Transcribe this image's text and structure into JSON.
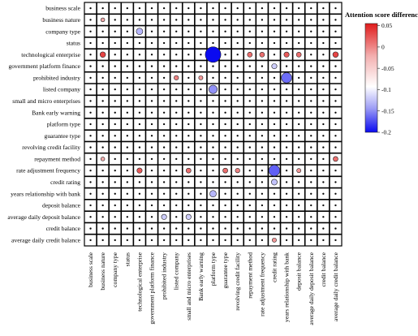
{
  "chart_data": {
    "type": "heatmap",
    "title": "",
    "xlabel": "",
    "ylabel": "",
    "rows": [
      "business scale",
      "business nature",
      "company type",
      "status",
      "technological enterprise",
      "government platform finance",
      "prohibited industry",
      "listed company",
      "small and micro enterprises",
      "Bank early warning",
      "platform type",
      "guarantee type",
      "revolving credit facility",
      "repayment method",
      "rate adjustment frequency",
      "credit rating",
      "years relationship with bank",
      "deposit balance",
      "average daily deposit balance",
      "credit balance",
      "average daily credit balance"
    ],
    "columns": [
      "business scale",
      "business nature",
      "company type",
      "status",
      "technological enterprise",
      "government platform finance",
      "prohibited industry",
      "listed company",
      "small and micro enterprises",
      "Bank early warning",
      "platform type",
      "guarantee type",
      "revolving credit facility",
      "repayment method",
      "rate adjustment frequency",
      "credit rating",
      "years relationship with bank",
      "deposit balance",
      "average daily deposit balance",
      "credit balance",
      "average daily credit balance"
    ],
    "base_value": 0,
    "cells": [
      {
        "row": 1,
        "col": 1,
        "value": 0.02
      },
      {
        "row": 2,
        "col": 4,
        "value": -0.06
      },
      {
        "row": 4,
        "col": 1,
        "value": 0.045
      },
      {
        "row": 4,
        "col": 10,
        "value": -0.2
      },
      {
        "row": 4,
        "col": 13,
        "value": 0.035
      },
      {
        "row": 4,
        "col": 14,
        "value": 0.035
      },
      {
        "row": 4,
        "col": 16,
        "value": 0.04
      },
      {
        "row": 4,
        "col": 17,
        "value": 0.035
      },
      {
        "row": 4,
        "col": 20,
        "value": 0.045
      },
      {
        "row": 5,
        "col": 15,
        "value": -0.04
      },
      {
        "row": 6,
        "col": 7,
        "value": 0.03
      },
      {
        "row": 6,
        "col": 9,
        "value": 0.025
      },
      {
        "row": 6,
        "col": 16,
        "value": -0.12
      },
      {
        "row": 7,
        "col": 10,
        "value": -0.09
      },
      {
        "row": 13,
        "col": 1,
        "value": 0.02
      },
      {
        "row": 13,
        "col": 20,
        "value": 0.035
      },
      {
        "row": 14,
        "col": 4,
        "value": 0.04
      },
      {
        "row": 14,
        "col": 8,
        "value": 0.035
      },
      {
        "row": 14,
        "col": 11,
        "value": 0.035
      },
      {
        "row": 14,
        "col": 12,
        "value": 0.03
      },
      {
        "row": 14,
        "col": 15,
        "value": -0.13
      },
      {
        "row": 14,
        "col": 17,
        "value": 0.025
      },
      {
        "row": 15,
        "col": 15,
        "value": -0.05
      },
      {
        "row": 16,
        "col": 10,
        "value": -0.06
      },
      {
        "row": 18,
        "col": 6,
        "value": -0.04
      },
      {
        "row": 18,
        "col": 8,
        "value": -0.04
      },
      {
        "row": 20,
        "col": 15,
        "value": 0.025
      }
    ],
    "colorbar": {
      "label": "Attention score difference",
      "range": [
        -0.2,
        0.055
      ],
      "ticks": [
        0.05,
        0,
        -0.05,
        -0.1,
        -0.15,
        -0.2
      ],
      "tick_labels": [
        "0.05",
        "0",
        "-0.05",
        "-0.1",
        "-0.15",
        "-0.2"
      ],
      "colormap": [
        "#0000ff",
        "#ffffff",
        "#ff0000"
      ]
    },
    "grid": true,
    "legend_position": "top-right"
  }
}
